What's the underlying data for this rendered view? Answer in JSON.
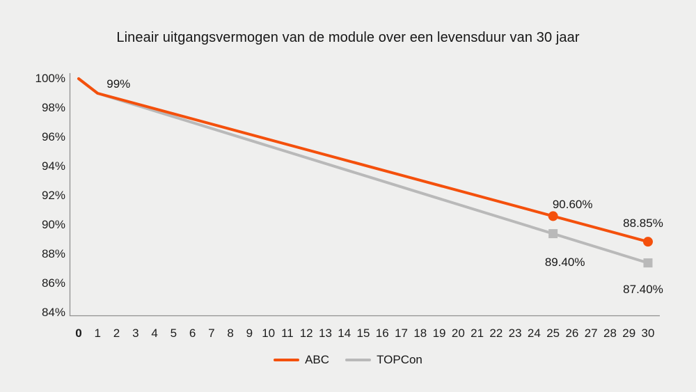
{
  "title": "Lineair uitgangsvermogen van de module over een levensduur van 30 jaar",
  "colors": {
    "background": "#EFEFEE",
    "abc_orange": "#F4500C",
    "topcon_gray": "#B9B9B9",
    "axis_gray": "#8F8F8F",
    "text_dark": "#161616"
  },
  "legend": {
    "items": [
      {
        "label": "ABC",
        "color": "#F4500C"
      },
      {
        "label": "TOPCon",
        "color": "#B9B9B9"
      }
    ]
  },
  "chart_data": {
    "type": "line",
    "title": "Lineair uitgangsvermogen van de module over een levensduur van 30 jaar",
    "xlabel": "",
    "ylabel": "",
    "xlim": [
      0,
      30
    ],
    "ylim": [
      84,
      100
    ],
    "grid": false,
    "legend_position": "bottom",
    "y_ticks": [
      {
        "value": 100,
        "label": "100%"
      },
      {
        "value": 98,
        "label": "98%"
      },
      {
        "value": 96,
        "label": "96%"
      },
      {
        "value": 94,
        "label": "94%"
      },
      {
        "value": 92,
        "label": "92%"
      },
      {
        "value": 90,
        "label": "90%"
      },
      {
        "value": 88,
        "label": "88%"
      },
      {
        "value": 86,
        "label": "86%"
      },
      {
        "value": 84,
        "label": "84%"
      }
    ],
    "x_ticks": [
      "0",
      "1",
      "2",
      "3",
      "4",
      "5",
      "6",
      "7",
      "8",
      "9",
      "10",
      "11",
      "12",
      "13",
      "14",
      "15",
      "16",
      "17",
      "18",
      "19",
      "20",
      "21",
      "22",
      "23",
      "24",
      "25",
      "26",
      "27",
      "28",
      "29",
      "30"
    ],
    "x_tick_bold": [
      "0"
    ],
    "series": [
      {
        "name": "ABC",
        "color": "#F4500C",
        "marker": "circle",
        "points": [
          {
            "x": 0,
            "y": 100
          },
          {
            "x": 1,
            "y": 99,
            "label": "99%"
          },
          {
            "x": 25,
            "y": 90.6,
            "label": "90.60%",
            "marker": true
          },
          {
            "x": 30,
            "y": 88.85,
            "label": "88.85%",
            "marker": true
          }
        ]
      },
      {
        "name": "TOPCon",
        "color": "#B9B9B9",
        "marker": "square",
        "points": [
          {
            "x": 0,
            "y": 100
          },
          {
            "x": 1,
            "y": 99
          },
          {
            "x": 25,
            "y": 89.4,
            "label": "89.40%",
            "marker": true
          },
          {
            "x": 30,
            "y": 87.4,
            "label": "87.40%",
            "marker": true
          }
        ]
      }
    ]
  }
}
